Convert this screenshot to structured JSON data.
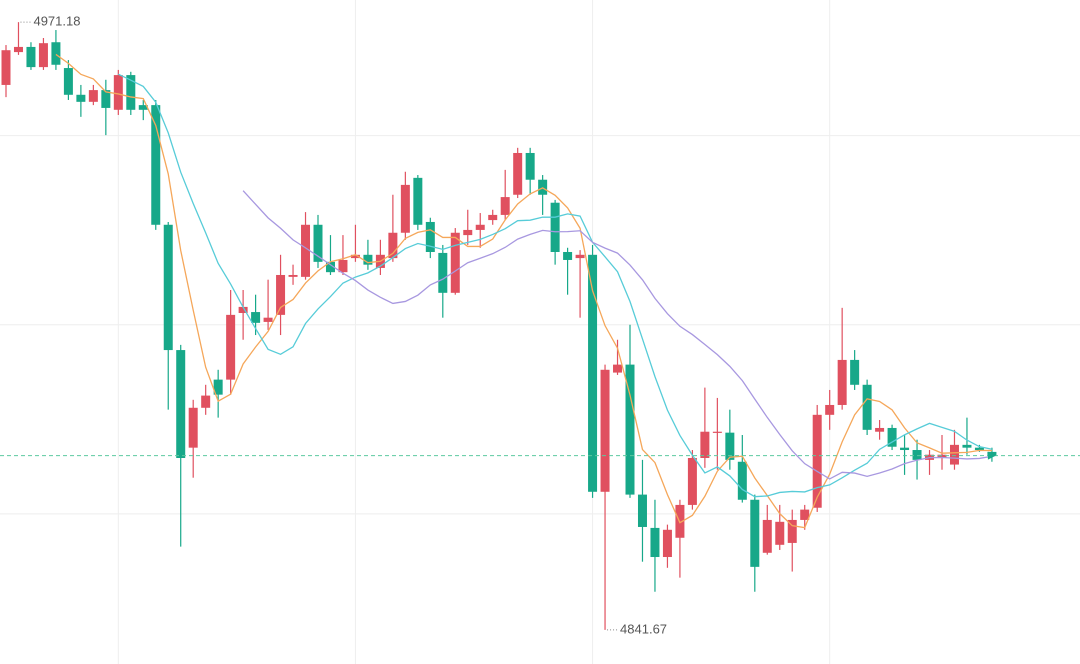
{
  "chart_data": {
    "type": "candlestick",
    "up_color": "#e0505f",
    "down_color": "#17a889",
    "ylim": [
      4834.4,
      4975.9
    ],
    "ygrid": [
      4947.0,
      4906.7,
      4866.4
    ],
    "xgrid": [
      9,
      28,
      47,
      66
    ],
    "moving_averages": [
      {
        "period": 5,
        "color": "#f5a75a"
      },
      {
        "period": 10,
        "color": "#57ccd8"
      },
      {
        "period": 20,
        "color": "#a898e0"
      }
    ],
    "open": [
      4957.8,
      4964.8,
      4965.9,
      4961.6,
      4966.9,
      4961.4,
      4955.7,
      4954.2,
      4956.7,
      4952.5,
      4959.9,
      4953.5,
      4953.5,
      4928.0,
      4901.3,
      4880.5,
      4889.0,
      4895.0,
      4895.0,
      4909.2,
      4909.4,
      4907.3,
      4908.8,
      4916.9,
      4916.9,
      4928.0,
      4920.1,
      4917.9,
      4920.9,
      4921.6,
      4918.8,
      4920.9,
      4926.3,
      4938.0,
      4928.6,
      4922.0,
      4913.5,
      4925.8,
      4926.9,
      4929.0,
      4930.1,
      4934.4,
      4943.3,
      4937.6,
      4932.7,
      4922.2,
      4920.9,
      4921.6,
      4871.1,
      4896.5,
      4898.2,
      4870.5,
      4863.4,
      4857.2,
      4861.3,
      4868.3,
      4878.3,
      4883.7,
      4883.7,
      4877.5,
      4869.4,
      4858.1,
      4859.8,
      4860.2,
      4865.1,
      4867.7,
      4887.5,
      4889.6,
      4899.2,
      4893.9,
      4883.9,
      4884.7,
      4880.5,
      4880.0,
      4877.9,
      4878.3,
      4876.9,
      4881.1,
      4880.5,
      4879.6
    ],
    "high": [
      4966.3,
      4971.18,
      4966.9,
      4967.8,
      4969.5,
      4963.1,
      4957.8,
      4957.8,
      4958.9,
      4961.0,
      4960.6,
      4954.6,
      4954.6,
      4928.6,
      4902.4,
      4890.7,
      4893.9,
      4897.1,
      4914.1,
      4914.1,
      4913.1,
      4916.3,
      4921.6,
      4919.5,
      4930.7,
      4930.1,
      4925.8,
      4925.8,
      4928.0,
      4924.8,
      4924.8,
      4934.4,
      4939.3,
      4938.6,
      4929.5,
      4923.7,
      4927.3,
      4931.2,
      4930.5,
      4931.2,
      4939.7,
      4944.4,
      4944.4,
      4938.6,
      4933.3,
      4923.1,
      4922.6,
      4923.7,
      4898.2,
      4903.5,
      4906.7,
      4877.9,
      4869.4,
      4864.1,
      4869.4,
      4880.0,
      4893.3,
      4891.1,
      4888.6,
      4883.2,
      4870.5,
      4868.3,
      4868.3,
      4867.3,
      4868.3,
      4889.6,
      4892.8,
      4910.3,
      4901.3,
      4895.0,
      4886.4,
      4885.4,
      4883.2,
      4882.2,
      4880.0,
      4883.2,
      4884.3,
      4886.9,
      4881.1,
      4880.5
    ],
    "low": [
      4955.2,
      4964.2,
      4961.0,
      4961.0,
      4961.0,
      4954.6,
      4951.0,
      4953.5,
      4947.1,
      4951.4,
      4951.4,
      4950.3,
      4926.9,
      4888.6,
      4859.4,
      4874.1,
      4887.5,
      4886.9,
      4891.8,
      4903.5,
      4904.5,
      4905.6,
      4904.5,
      4915.2,
      4916.3,
      4918.8,
      4917.3,
      4917.3,
      4920.1,
      4918.4,
      4917.3,
      4920.1,
      4924.8,
      4926.9,
      4920.9,
      4908.2,
      4913.1,
      4923.7,
      4923.1,
      4928.0,
      4929.0,
      4933.7,
      4934.4,
      4930.1,
      4919.5,
      4913.1,
      4908.2,
      4869.8,
      4841.67,
      4896.0,
      4869.8,
      4856.2,
      4849.8,
      4854.9,
      4852.8,
      4867.3,
      4876.2,
      4875.8,
      4875.8,
      4868.8,
      4849.8,
      4857.7,
      4858.7,
      4854.1,
      4863.0,
      4866.8,
      4884.3,
      4888.6,
      4892.8,
      4883.2,
      4882.2,
      4880.0,
      4874.7,
      4873.7,
      4874.7,
      4875.8,
      4875.8,
      4879.0,
      4879.6,
      4877.5
    ],
    "close": [
      4965.2,
      4965.9,
      4961.6,
      4966.7,
      4962.1,
      4955.7,
      4954.2,
      4956.7,
      4952.9,
      4959.9,
      4952.5,
      4952.5,
      4928.0,
      4901.3,
      4878.3,
      4889.0,
      4891.6,
      4891.8,
      4908.8,
      4910.5,
      4907.1,
      4908.2,
      4917.3,
      4917.3,
      4928.0,
      4920.1,
      4917.9,
      4920.5,
      4921.6,
      4919.5,
      4921.6,
      4926.3,
      4936.5,
      4928.0,
      4922.2,
      4913.5,
      4926.3,
      4926.9,
      4928.0,
      4930.1,
      4933.9,
      4943.3,
      4937.6,
      4934.4,
      4922.2,
      4920.5,
      4921.6,
      4871.1,
      4897.1,
      4898.2,
      4870.5,
      4863.6,
      4857.2,
      4863.0,
      4868.3,
      4878.3,
      4883.9,
      4883.9,
      4877.9,
      4869.4,
      4855.1,
      4865.1,
      4864.7,
      4865.1,
      4867.3,
      4887.5,
      4889.6,
      4899.2,
      4893.9,
      4884.3,
      4884.7,
      4880.7,
      4880.0,
      4877.9,
      4879.0,
      4879.0,
      4881.1,
      4880.5,
      4880.0,
      4878.8
    ]
  }
}
